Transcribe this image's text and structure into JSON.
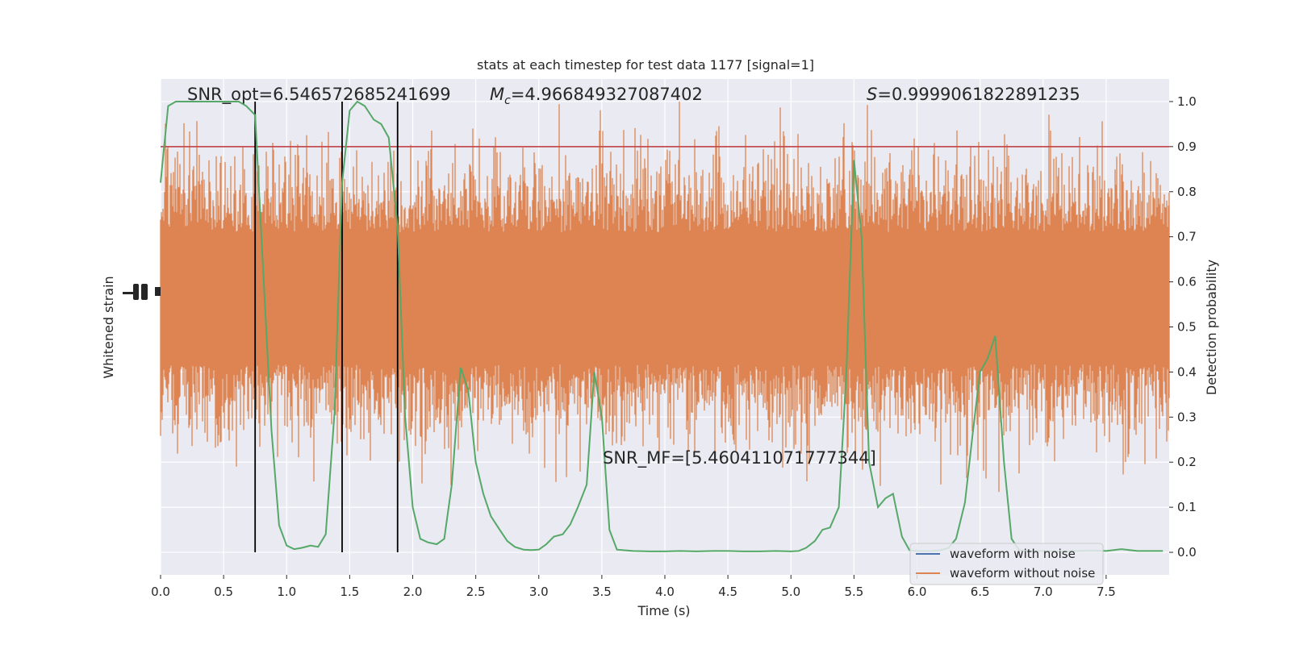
{
  "chart_data": {
    "type": "line",
    "title": "stats at each timestep for test data 1177 [signal=1]",
    "xlabel": "Time (s)",
    "ylabel_left": "Whitened strain",
    "ylabel_right": "Detection probability",
    "xlim": [
      0,
      8
    ],
    "xticks": [
      0.0,
      0.5,
      1.0,
      1.5,
      2.0,
      2.5,
      3.0,
      3.5,
      4.0,
      4.5,
      5.0,
      5.5,
      6.0,
      6.5,
      7.0,
      7.5
    ],
    "xtick_labels": [
      "0.0",
      "0.5",
      "1.0",
      "1.5",
      "2.0",
      "2.5",
      "3.0",
      "3.5",
      "4.0",
      "4.5",
      "5.0",
      "5.5",
      "6.0",
      "6.5",
      "7.0",
      "7.5"
    ],
    "ylim_right": [
      -0.05,
      1.05
    ],
    "yticks_right": [
      0.0,
      0.1,
      0.2,
      0.3,
      0.4,
      0.5,
      0.6,
      0.7,
      0.8,
      0.9,
      1.0
    ],
    "ytick_labels_right": [
      "0.0",
      "0.1",
      "0.2",
      "0.3",
      "0.4",
      "0.5",
      "0.6",
      "0.7",
      "0.8",
      "0.9",
      "1.0"
    ],
    "threshold": 0.9,
    "vertical_markers": [
      0.75,
      1.44,
      1.88
    ],
    "annotations": {
      "snr_opt": "SNR_opt=6.546572685241699",
      "mc_symbol": "M",
      "mc_sub": "c",
      "mc_value": "=4.966849327087402",
      "s_symbol": "S",
      "s_value": "=0.9999061822891235",
      "snr_mf": "SNR_MF=[5.460411071777344]"
    },
    "legend": {
      "placement": "lower-right",
      "entries": [
        {
          "label": "waveform with noise",
          "color": "#4c72b0"
        },
        {
          "label": "waveform without noise",
          "color": "#dd8452"
        }
      ]
    },
    "series": [
      {
        "name": "detection probability",
        "color": "#55a868",
        "x": [
          0.0,
          0.06,
          0.12,
          0.25,
          0.5,
          0.62,
          0.68,
          0.75,
          0.8,
          0.88,
          0.94,
          1.0,
          1.06,
          1.12,
          1.19,
          1.25,
          1.31,
          1.38,
          1.44,
          1.5,
          1.56,
          1.62,
          1.69,
          1.75,
          1.81,
          1.88,
          1.94,
          2.0,
          2.06,
          2.12,
          2.19,
          2.25,
          2.31,
          2.38,
          2.44,
          2.5,
          2.56,
          2.62,
          2.69,
          2.75,
          2.81,
          2.88,
          2.94,
          3.0,
          3.06,
          3.12,
          3.19,
          3.25,
          3.31,
          3.38,
          3.44,
          3.5,
          3.56,
          3.62,
          3.75,
          3.88,
          4.0,
          4.12,
          4.25,
          4.38,
          4.5,
          4.62,
          4.75,
          4.88,
          5.0,
          5.06,
          5.12,
          5.19,
          5.25,
          5.31,
          5.38,
          5.44,
          5.5,
          5.56,
          5.62,
          5.69,
          5.75,
          5.81,
          5.88,
          5.94,
          6.0,
          6.06,
          6.12,
          6.19,
          6.25,
          6.31,
          6.38,
          6.44,
          6.5,
          6.56,
          6.62,
          6.69,
          6.75,
          6.81,
          6.88,
          7.0,
          7.12,
          7.25,
          7.38,
          7.5,
          7.62,
          7.75,
          7.88,
          7.95
        ],
        "y": [
          0.82,
          0.99,
          1.0,
          1.0,
          1.0,
          1.0,
          0.99,
          0.97,
          0.7,
          0.27,
          0.06,
          0.015,
          0.007,
          0.01,
          0.015,
          0.012,
          0.04,
          0.31,
          0.82,
          0.98,
          1.0,
          0.99,
          0.96,
          0.95,
          0.92,
          0.72,
          0.3,
          0.1,
          0.03,
          0.022,
          0.018,
          0.03,
          0.15,
          0.41,
          0.36,
          0.2,
          0.13,
          0.08,
          0.05,
          0.025,
          0.012,
          0.006,
          0.005,
          0.006,
          0.018,
          0.035,
          0.04,
          0.062,
          0.1,
          0.15,
          0.4,
          0.3,
          0.05,
          0.006,
          0.003,
          0.002,
          0.002,
          0.003,
          0.002,
          0.003,
          0.003,
          0.002,
          0.002,
          0.003,
          0.002,
          0.003,
          0.01,
          0.025,
          0.05,
          0.055,
          0.1,
          0.4,
          0.87,
          0.7,
          0.2,
          0.1,
          0.12,
          0.13,
          0.035,
          0.005,
          0.003,
          0.003,
          0.003,
          0.005,
          0.01,
          0.03,
          0.11,
          0.26,
          0.4,
          0.43,
          0.48,
          0.2,
          0.03,
          0.005,
          0.003,
          0.003,
          0.002,
          0.003,
          0.004,
          0.003,
          0.007,
          0.003,
          0.003,
          0.003
        ]
      }
    ]
  }
}
